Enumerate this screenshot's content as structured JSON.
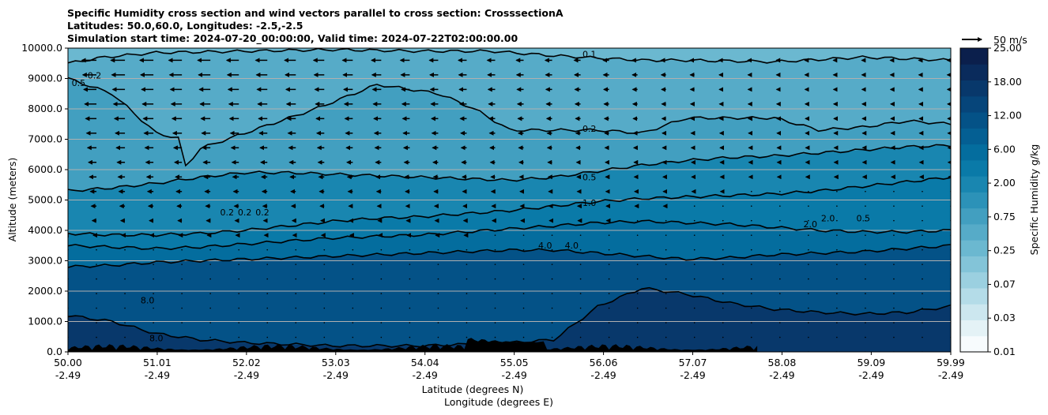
{
  "chart_data": {
    "type": "contourf_cross_section",
    "title_lines": [
      "Specific Humidity cross section and wind vectors parallel to cross section: CrosssectionA",
      "Latitudes: 50.0,60.0, Longitudes: -2.5,-2.5",
      "Simulation start time: 2024-07-20_00:00:00, Valid time: 2024-07-22T02:00:00.00"
    ],
    "xlabel_primary": "Latitude (degrees N)",
    "xlabel_secondary": "Longitude (degrees E)",
    "ylabel": "Altitude (meters)",
    "x_ticks": [
      {
        "lat": "50.00",
        "lon": "-2.49",
        "value": 50.0
      },
      {
        "lat": "51.01",
        "lon": "-2.49",
        "value": 51.01
      },
      {
        "lat": "52.02",
        "lon": "-2.49",
        "value": 52.02
      },
      {
        "lat": "53.03",
        "lon": "-2.49",
        "value": 53.03
      },
      {
        "lat": "54.04",
        "lon": "-2.49",
        "value": 54.04
      },
      {
        "lat": "55.05",
        "lon": "-2.49",
        "value": 55.05
      },
      {
        "lat": "56.06",
        "lon": "-2.49",
        "value": 56.06
      },
      {
        "lat": "57.07",
        "lon": "-2.49",
        "value": 57.07
      },
      {
        "lat": "58.08",
        "lon": "-2.49",
        "value": 58.08
      },
      {
        "lat": "59.09",
        "lon": "-2.49",
        "value": 59.09
      },
      {
        "lat": "59.99",
        "lon": "-2.49",
        "value": 59.99
      }
    ],
    "xlim": [
      50.0,
      59.99
    ],
    "y_ticks": [
      "0.0",
      "1000.0",
      "2000.0",
      "3000.0",
      "4000.0",
      "5000.0",
      "6000.0",
      "7000.0",
      "8000.0",
      "9000.0",
      "10000.0"
    ],
    "ylim": [
      0,
      10000
    ],
    "horizontal_gridlines": true,
    "colorbar": {
      "label": "Specific Humidity g/kg",
      "tick_labels": [
        "0.01",
        "0.03",
        "0.07",
        "0.25",
        "0.75",
        "2.00",
        "6.00",
        "12.00",
        "18.00",
        "25.00"
      ],
      "levels": [
        0.01,
        0.02,
        0.03,
        0.05,
        0.07,
        0.1,
        0.25,
        0.5,
        0.75,
        1.0,
        2.0,
        4.0,
        6.0,
        8.0,
        12.0,
        15.0,
        18.0,
        20.0,
        25.0
      ],
      "colors": [
        "#f7fbfd",
        "#e4f2f6",
        "#cce7ef",
        "#b4dce8",
        "#9bd0e0",
        "#83c4d8",
        "#6bb8d0",
        "#56abc8",
        "#429fc0",
        "#2c92b8",
        "#1986b0",
        "#0a7aa8",
        "#046d9e",
        "#045f93",
        "#045287",
        "#06457a",
        "#08386b",
        "#0a2b5c",
        "#0b1f4c"
      ]
    },
    "vector_key": {
      "label": "50 m/s",
      "speed": 50
    },
    "contour_levels": [
      "0.1",
      "0.2",
      "0.5",
      "1.0",
      "2.0",
      "4.0",
      "8.0"
    ],
    "contour_labels": [
      {
        "text": "0.1",
        "lat": 55.9,
        "alt": 9700
      },
      {
        "text": "0.2",
        "lat": 55.9,
        "alt": 7250
      },
      {
        "text": "0.5",
        "lat": 55.9,
        "alt": 5650
      },
      {
        "text": "1.0",
        "lat": 55.9,
        "alt": 4800
      },
      {
        "text": "4.0",
        "lat": 55.4,
        "alt": 3400
      },
      {
        "text": "4.0",
        "lat": 55.7,
        "alt": 3400
      },
      {
        "text": "0.2",
        "lat": 51.8,
        "alt": 4500
      },
      {
        "text": "0.2",
        "lat": 52.0,
        "alt": 4500
      },
      {
        "text": "0.2",
        "lat": 52.2,
        "alt": 4500
      },
      {
        "text": "0.5",
        "lat": 50.12,
        "alt": 8750
      },
      {
        "text": "0.2",
        "lat": 50.3,
        "alt": 9000
      },
      {
        "text": "2.0",
        "lat": 58.6,
        "alt": 4300
      },
      {
        "text": "2.0",
        "lat": 58.4,
        "alt": 4100
      },
      {
        "text": "0.5",
        "lat": 59.0,
        "alt": 4300
      },
      {
        "text": "8.0",
        "lat": 50.9,
        "alt": 1600
      },
      {
        "text": "8.0",
        "lat": 51.0,
        "alt": 350
      }
    ],
    "series": [
      {
        "name": "0.1 contour",
        "level": 0.1,
        "lat": [
          50.0,
          50.4,
          51.0,
          52.0,
          53.0,
          54.0,
          54.8,
          55.5,
          56.5,
          57.0,
          58.0,
          59.0,
          59.99
        ],
        "alt": [
          9500,
          9700,
          9850,
          9900,
          9950,
          9900,
          9900,
          9750,
          9600,
          9600,
          9550,
          9700,
          9600
        ]
      },
      {
        "name": "0.2 contour",
        "level": 0.2,
        "lat": [
          50.0,
          50.5,
          51.0,
          51.3,
          51.3,
          51.5,
          52.2,
          52.8,
          53.5,
          54.2,
          54.6,
          55.0,
          56.0,
          56.5,
          57.0,
          58.0,
          58.5,
          59.0,
          59.5,
          59.99
        ],
        "alt": [
          9000,
          8500,
          7200,
          7000,
          6000,
          6700,
          7400,
          8000,
          8800,
          8500,
          8000,
          7300,
          7300,
          7200,
          7700,
          7700,
          7300,
          7400,
          7600,
          7500
        ]
      },
      {
        "name": "0.5 contour",
        "level": 0.5,
        "lat": [
          50.0,
          50.5,
          51.0,
          51.5,
          52.0,
          52.5,
          53.0,
          53.5,
          54.0,
          54.5,
          55.0,
          55.5,
          56.0,
          56.5,
          57.0,
          57.5,
          58.0,
          58.5,
          59.0,
          59.5,
          59.99
        ],
        "alt": [
          5300,
          5400,
          5550,
          5750,
          5900,
          5900,
          5850,
          5800,
          5750,
          5700,
          5650,
          5750,
          5950,
          6150,
          6300,
          6400,
          6450,
          6550,
          6650,
          6750,
          6800
        ]
      },
      {
        "name": "1.0 contour",
        "level": 1.0,
        "lat": [
          50.0,
          50.5,
          51.0,
          51.5,
          52.0,
          52.5,
          53.0,
          53.5,
          54.0,
          54.5,
          55.0,
          55.5,
          56.0,
          56.5,
          57.0,
          57.5,
          58.0,
          58.5,
          59.0,
          59.5,
          59.99
        ],
        "alt": [
          3900,
          3850,
          3850,
          3900,
          4000,
          4150,
          4300,
          4400,
          4450,
          4550,
          4650,
          4800,
          4950,
          5050,
          5100,
          5150,
          5200,
          5300,
          5450,
          5600,
          5750
        ]
      },
      {
        "name": "2.0 contour",
        "level": 2.0,
        "lat": [
          50.0,
          50.5,
          51.0,
          51.5,
          52.0,
          52.5,
          53.0,
          53.5,
          54.0,
          54.5,
          55.0,
          55.5,
          56.0,
          56.5,
          57.0,
          57.5,
          58.0,
          58.5,
          59.0,
          59.5,
          59.99
        ],
        "alt": [
          3500,
          3450,
          3400,
          3450,
          3550,
          3650,
          3750,
          3800,
          3850,
          3950,
          4050,
          4150,
          4250,
          4300,
          4250,
          4200,
          4100,
          4000,
          3950,
          3950,
          4000
        ]
      },
      {
        "name": "4.0 contour",
        "level": 4.0,
        "lat": [
          50.0,
          50.5,
          51.0,
          51.5,
          52.0,
          52.5,
          53.0,
          53.5,
          54.0,
          54.5,
          55.0,
          55.5,
          56.0,
          56.5,
          57.0,
          57.5,
          58.0,
          58.5,
          59.0,
          59.5,
          59.99
        ],
        "alt": [
          2800,
          2850,
          2950,
          3000,
          3050,
          3100,
          3150,
          3200,
          3250,
          3300,
          3350,
          3350,
          3250,
          3150,
          3050,
          3100,
          3200,
          3250,
          3300,
          3400,
          3500
        ]
      },
      {
        "name": "8.0 contour",
        "level": 8.0,
        "lat": [
          50.0,
          50.5,
          51.0,
          51.5,
          52.0,
          52.5,
          53.0,
          53.5,
          54.0,
          54.5,
          55.0,
          55.5,
          56.0,
          56.5,
          57.0,
          57.5,
          58.0,
          58.5,
          59.0,
          59.5,
          59.99
        ],
        "alt": [
          1200,
          1000,
          600,
          400,
          300,
          250,
          200,
          200,
          200,
          250,
          300,
          400,
          1500,
          2100,
          1900,
          1600,
          1400,
          1300,
          1250,
          1300,
          1500
        ]
      }
    ]
  }
}
